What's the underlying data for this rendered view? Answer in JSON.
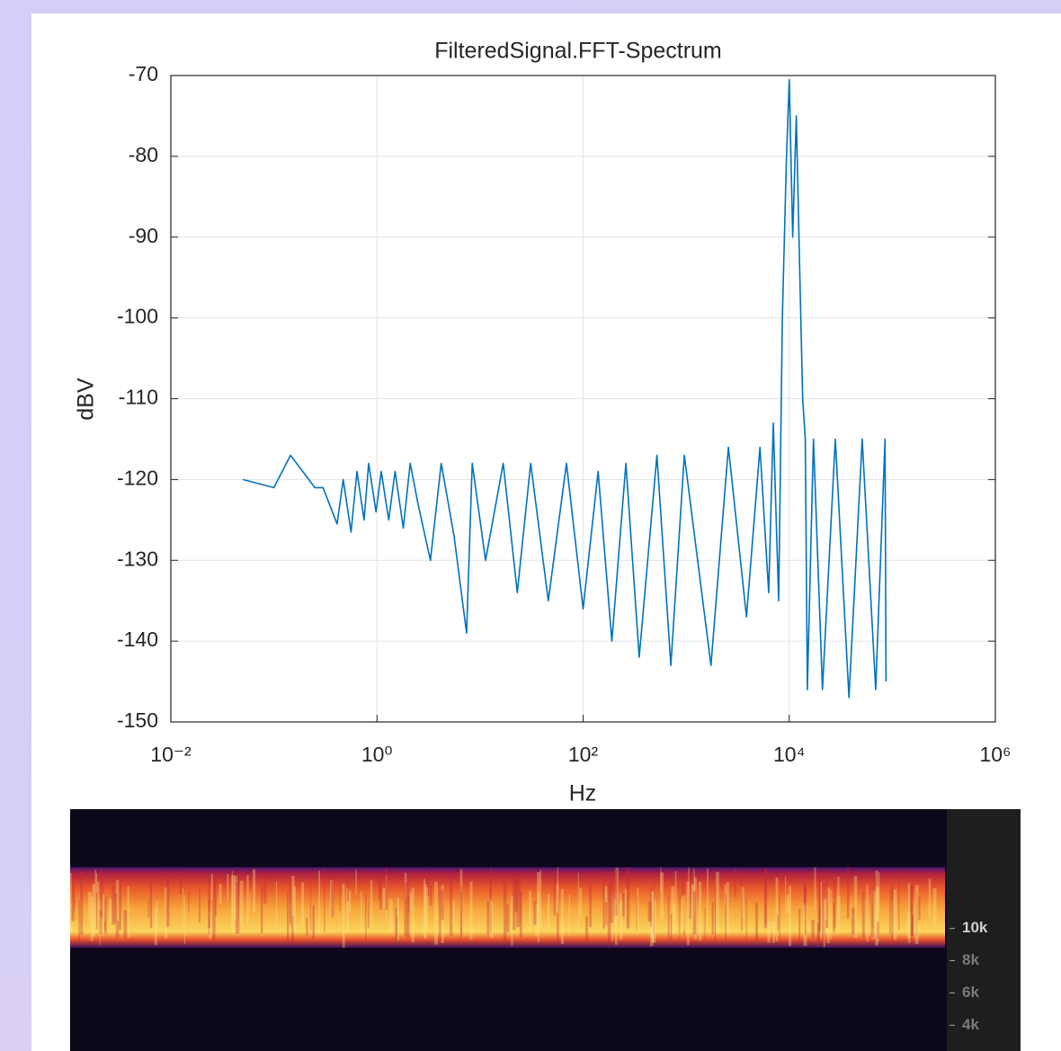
{
  "chart_data": [
    {
      "type": "line",
      "title": "FilteredSignal.FFT-Spectrum",
      "x_label": "Hz",
      "y_label": "dBV",
      "log_x": true,
      "grid": true,
      "xlim": [
        0.01,
        1000000
      ],
      "ylim": [
        -150,
        -70
      ],
      "xticks": [
        {
          "value": 0.01,
          "label": "10⁻²"
        },
        {
          "value": 1,
          "label": "10⁰"
        },
        {
          "value": 100,
          "label": "10²"
        },
        {
          "value": 10000,
          "label": "10⁴"
        },
        {
          "value": 1000000,
          "label": "10⁶"
        }
      ],
      "yticks": [
        -150,
        -140,
        -130,
        -120,
        -110,
        -100,
        -90,
        -80,
        -70
      ],
      "x": [
        0.05,
        0.1,
        0.145,
        0.25,
        0.3,
        0.41,
        0.47,
        0.56,
        0.64,
        0.75,
        0.83,
        0.98,
        1.1,
        1.3,
        1.5,
        1.8,
        2.1,
        2.5,
        3.3,
        4.2,
        5.6,
        7.4,
        8.4,
        11.3,
        16.8,
        23,
        31,
        46,
        69,
        100,
        140,
        190,
        260,
        350,
        520,
        710,
        960,
        1740,
        2570,
        3850,
        5200,
        6320,
        7000,
        7900,
        8570,
        9400,
        10000,
        10800,
        11700,
        12700,
        13500,
        14300,
        15000,
        17200,
        21000,
        28000,
        38000,
        51000,
        69000,
        85000,
        87000
      ],
      "series": [
        {
          "color": "#0072bd",
          "values": [
            -120,
            -121,
            -117,
            -121,
            -121,
            -125.5,
            -120,
            -126.5,
            -119,
            -125,
            -118,
            -124,
            -119,
            -125,
            -119,
            -126,
            -118,
            -123,
            -130,
            -118,
            -127,
            -139,
            -118,
            -130,
            -118,
            -134,
            -118,
            -135,
            -118,
            -136,
            -119,
            -140,
            -118,
            -142,
            -117,
            -143,
            -117,
            -143,
            -116,
            -137,
            -116,
            -134,
            -113,
            -135,
            -100,
            -80,
            -70.5,
            -90,
            -75,
            -95,
            -110,
            -115,
            -146,
            -115,
            -146,
            -115,
            -147,
            -115,
            -146,
            -115,
            -145
          ]
        }
      ]
    },
    {
      "type": "heatmap",
      "ylim": [
        2400,
        17400
      ],
      "yticks": [
        {
          "value": 10000,
          "label": "10k"
        },
        {
          "value": 8000,
          "label": "8k"
        },
        {
          "value": 6000,
          "label": "6k"
        },
        {
          "value": 4000,
          "label": "4k"
        }
      ],
      "band": [
        8800,
        13800
      ]
    }
  ]
}
